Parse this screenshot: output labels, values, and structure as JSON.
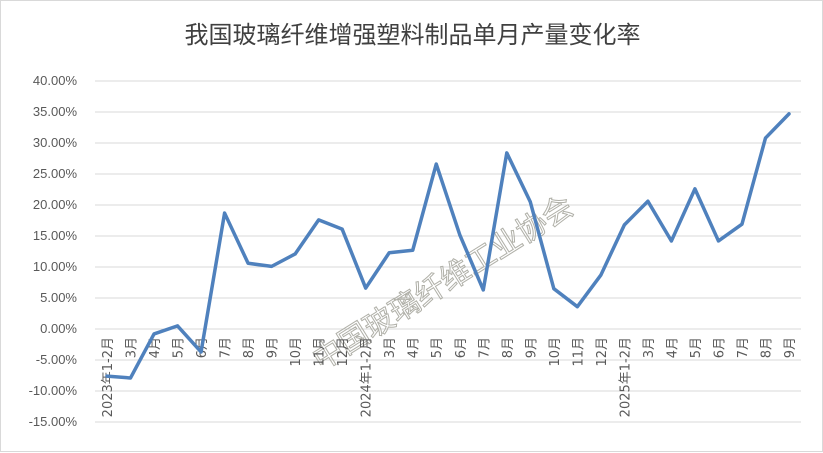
{
  "chart_data": {
    "type": "line",
    "title": "我国玻璃纤维增强塑料制品单月产量变化率",
    "categories": [
      "2023年1-2月",
      "3月",
      "4月",
      "5月",
      "6月",
      "7月",
      "8月",
      "9月",
      "10月",
      "11月",
      "12月",
      "2024年1-2月",
      "3月",
      "4月",
      "5月",
      "6月",
      "7月",
      "8月",
      "9月",
      "10月",
      "11月",
      "12月",
      "2025年1-2月",
      "3月",
      "4月",
      "5月",
      "6月",
      "7月",
      "8月",
      "9月"
    ],
    "series": [
      {
        "values": [
          -7.6,
          -7.9,
          -0.8,
          0.5,
          -3.7,
          18.7,
          10.6,
          10.1,
          12.1,
          17.6,
          16.1,
          6.6,
          12.3,
          12.7,
          26.6,
          15.2,
          6.3,
          28.4,
          20.5,
          6.5,
          3.6,
          8.7,
          16.8,
          20.6,
          14.2,
          22.6,
          14.2,
          16.9,
          30.8,
          34.7
        ],
        "color": "#4f81bd"
      }
    ],
    "y_ticks": [
      "40.00%",
      "35.00%",
      "30.00%",
      "25.00%",
      "20.00%",
      "15.00%",
      "10.00%",
      "5.00%",
      "0.00%",
      "-5.00%",
      "-10.00%",
      "-15.00%"
    ],
    "ylim": [
      -15,
      40
    ],
    "grid": true,
    "legend": "none",
    "watermark": "中国玻璃纤维工业协会"
  }
}
